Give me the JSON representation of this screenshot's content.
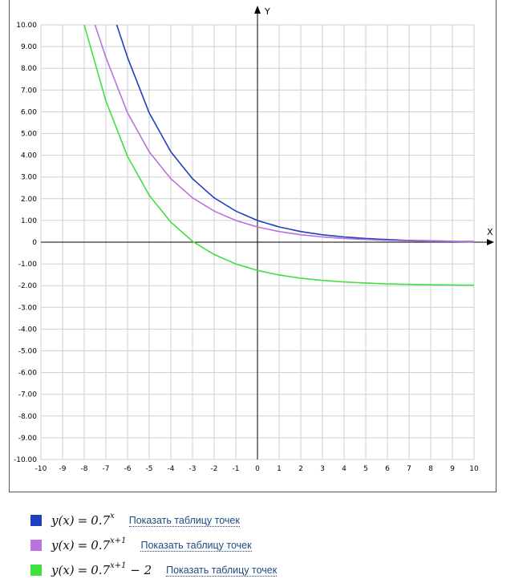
{
  "chart_data": {
    "type": "line",
    "xlabel": "X",
    "ylabel": "Y",
    "xlim": [
      -10,
      10
    ],
    "ylim": [
      -10,
      10
    ],
    "grid": true,
    "x_ticks": [
      "-10",
      "-9",
      "-8",
      "-7",
      "-6",
      "-5",
      "-4",
      "-3",
      "-2",
      "-1",
      "0",
      "1",
      "2",
      "3",
      "4",
      "5",
      "6",
      "7",
      "8",
      "9",
      "10"
    ],
    "y_ticks": [
      "10.00",
      "9.00",
      "8.00",
      "7.00",
      "6.00",
      "5.00",
      "4.00",
      "3.00",
      "2.00",
      "1.00",
      "0",
      "-1.00",
      "-2.00",
      "-3.00",
      "-4.00",
      "-5.00",
      "-6.00",
      "-7.00",
      "-8.00",
      "-9.00",
      "-10.00"
    ],
    "series": [
      {
        "name": "y(x) = 0.7^x",
        "color": "#1f3fbf",
        "x": [
          -6.5,
          -6,
          -5,
          -4,
          -3,
          -2,
          -1,
          0,
          1,
          2,
          3,
          4,
          5,
          6,
          7,
          8,
          9,
          10
        ],
        "y": [
          10.0,
          8.5,
          5.95,
          4.16,
          2.92,
          2.04,
          1.43,
          1.0,
          0.7,
          0.49,
          0.34,
          0.24,
          0.17,
          0.12,
          0.08,
          0.06,
          0.04,
          0.03
        ]
      },
      {
        "name": "y(x) = 0.7^(x+1)",
        "color": "#b873dc",
        "x": [
          -7.5,
          -7,
          -6,
          -5,
          -4,
          -3,
          -2,
          -1,
          0,
          1,
          2,
          3,
          4,
          5,
          6,
          7,
          8,
          9,
          10
        ],
        "y": [
          10.0,
          8.5,
          5.95,
          4.16,
          2.92,
          2.04,
          1.43,
          1.0,
          0.7,
          0.49,
          0.34,
          0.24,
          0.17,
          0.12,
          0.08,
          0.06,
          0.04,
          0.03,
          0.02
        ]
      },
      {
        "name": "y(x) = 0.7^(x+1) − 2",
        "color": "#3fe03f",
        "x": [
          -8,
          -7,
          -6,
          -5,
          -4,
          -3,
          -2,
          -1,
          0,
          1,
          2,
          3,
          4,
          5,
          6,
          7,
          8,
          9,
          10
        ],
        "y": [
          10.0,
          6.5,
          3.95,
          2.16,
          0.92,
          0.04,
          -0.57,
          -1.0,
          -1.3,
          -1.51,
          -1.66,
          -1.76,
          -1.83,
          -1.88,
          -1.92,
          -1.94,
          -1.96,
          -1.97,
          -1.98
        ]
      }
    ]
  },
  "legend": [
    {
      "color": "#1f3fbf",
      "base": "y(x)",
      "eq": "=",
      "rhs": "0.7",
      "sup": "x",
      "tail": "",
      "link": "Показать таблицу точек"
    },
    {
      "color": "#b873dc",
      "base": "y(x)",
      "eq": "=",
      "rhs": "0.7",
      "sup": "x+1",
      "tail": "",
      "link": "Показать таблицу точек"
    },
    {
      "color": "#3fe03f",
      "base": "y(x)",
      "eq": "=",
      "rhs": "0.7",
      "sup": "x+1",
      "tail": " − 2",
      "link": "Показать таблицу точек"
    }
  ]
}
